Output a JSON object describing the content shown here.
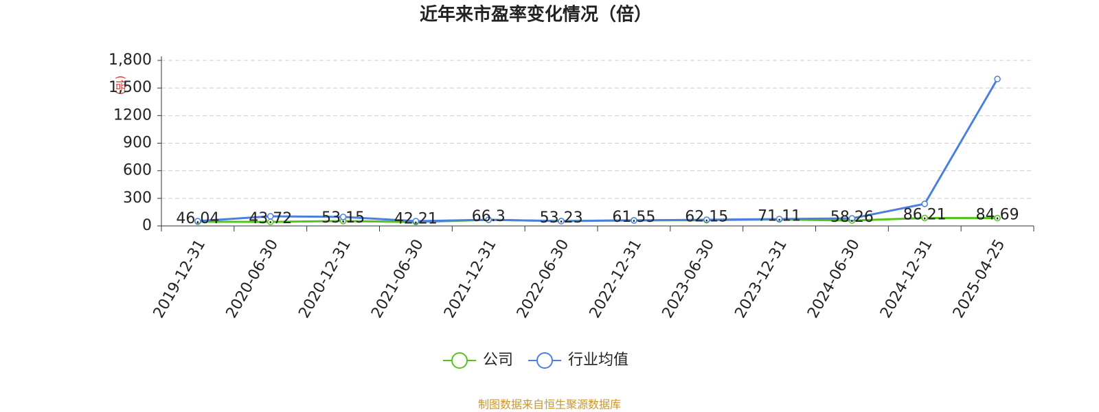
{
  "chart_data": {
    "type": "line",
    "title": "近年来市盈率变化情况（倍）",
    "y_label": "(倍)",
    "source": "制图数据来自恒生聚源数据库",
    "categories": [
      "2019-12-31",
      "2020-06-30",
      "2020-12-31",
      "2021-06-30",
      "2021-12-31",
      "2022-06-30",
      "2022-12-31",
      "2023-06-30",
      "2023-12-31",
      "2024-06-30",
      "2024-12-31",
      "2025-04-25"
    ],
    "series": [
      {
        "name": "公司",
        "color": "#52c41a",
        "values": [
          46.04,
          43.72,
          53.15,
          42.21,
          66.3,
          53.23,
          61.55,
          62.15,
          71.11,
          58.26,
          86.21,
          84.69
        ]
      },
      {
        "name": "行业均值",
        "color": "#4a7fe0",
        "values": [
          52,
          105,
          98,
          52,
          67,
          52,
          60,
          67,
          75,
          82,
          240,
          1598
        ]
      }
    ],
    "label_series": 0,
    "ylim": [
      0,
      1800
    ],
    "yticks": [
      0,
      300,
      600,
      900,
      1200,
      {
        "value": 1500,
        "label": "1,500"
      },
      {
        "value": 1800,
        "label": "1,800"
      }
    ],
    "grid": true
  }
}
